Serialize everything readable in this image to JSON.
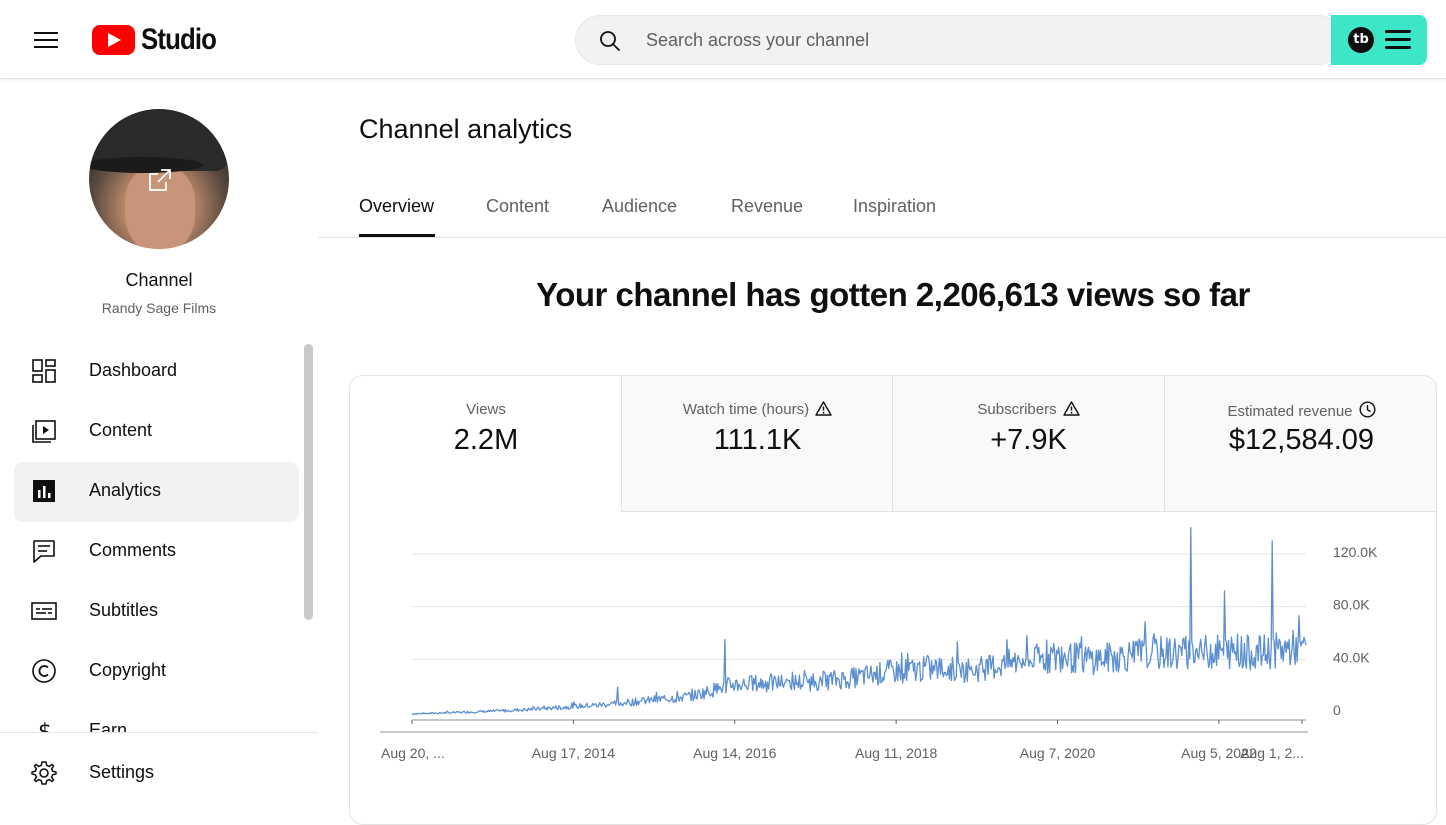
{
  "header": {
    "logo_text": "Studio",
    "search": {
      "placeholder": "Search across your channel"
    },
    "extension_logo": "tb"
  },
  "sidebar": {
    "channel_label": "Channel",
    "channel_name": "Randy Sage Films",
    "items": [
      {
        "label": "Dashboard",
        "icon": "dashboard-icon"
      },
      {
        "label": "Content",
        "icon": "content-icon"
      },
      {
        "label": "Analytics",
        "icon": "analytics-icon",
        "active": true
      },
      {
        "label": "Comments",
        "icon": "comments-icon"
      },
      {
        "label": "Subtitles",
        "icon": "subtitles-icon"
      },
      {
        "label": "Copyright",
        "icon": "copyright-icon"
      },
      {
        "label": "Earn",
        "icon": "earn-icon"
      }
    ],
    "footer": {
      "label": "Settings",
      "icon": "gear-icon"
    }
  },
  "main": {
    "title": "Channel analytics",
    "tabs": [
      {
        "label": "Overview",
        "active": true
      },
      {
        "label": "Content"
      },
      {
        "label": "Audience"
      },
      {
        "label": "Revenue"
      },
      {
        "label": "Inspiration"
      }
    ],
    "headline": "Your channel has gotten 2,206,613 views so far",
    "metrics": [
      {
        "label": "Views",
        "value": "2.2M",
        "icon": ""
      },
      {
        "label": "Watch time (hours)",
        "value": "111.1K",
        "icon": "warning-icon"
      },
      {
        "label": "Subscribers",
        "value": "+7.9K",
        "icon": "warning-icon"
      },
      {
        "label": "Estimated revenue",
        "value": "$12,584.09",
        "icon": "clock-icon"
      }
    ]
  },
  "chart_data": {
    "type": "line",
    "title": "",
    "xlabel": "",
    "ylabel": "",
    "x_tick_labels": [
      "Aug 20, ...",
      "Aug 17, 2014",
      "Aug 14, 2016",
      "Aug 11, 2018",
      "Aug 7, 2020",
      "Aug 5, 2022",
      "Aug 1, 2..."
    ],
    "y_tick_labels": [
      "0",
      "40.0K",
      "80.0K",
      "120.0K"
    ],
    "ylim": [
      0,
      140000
    ],
    "series_color": "#5b8fd0",
    "grid": true,
    "series": [
      {
        "x": [
          "2012-08",
          "2013-02",
          "2013-08",
          "2014-02",
          "2014-08",
          "2015-02",
          "2015-08",
          "2016-02",
          "2016-08",
          "2017-02",
          "2017-08",
          "2018-02",
          "2018-08",
          "2019-02",
          "2019-08",
          "2020-02",
          "2020-08",
          "2021-02",
          "2021-08",
          "2022-02",
          "2022-08",
          "2023-02",
          "2023-08"
        ],
        "y": [
          1500,
          2500,
          3500,
          5000,
          7000,
          9000,
          12000,
          15000,
          24000,
          25000,
          26000,
          29000,
          34000,
          36000,
          35000,
          41000,
          45000,
          43000,
          47000,
          48000,
          49000,
          48000,
          52000
        ]
      }
    ],
    "spikes": [
      {
        "x": "2015-03",
        "y": 22000
      },
      {
        "x": "2016-07",
        "y": 58000
      },
      {
        "x": "2022-04",
        "y": 143000
      },
      {
        "x": "2022-09",
        "y": 95000
      },
      {
        "x": "2023-04",
        "y": 133000
      }
    ]
  }
}
